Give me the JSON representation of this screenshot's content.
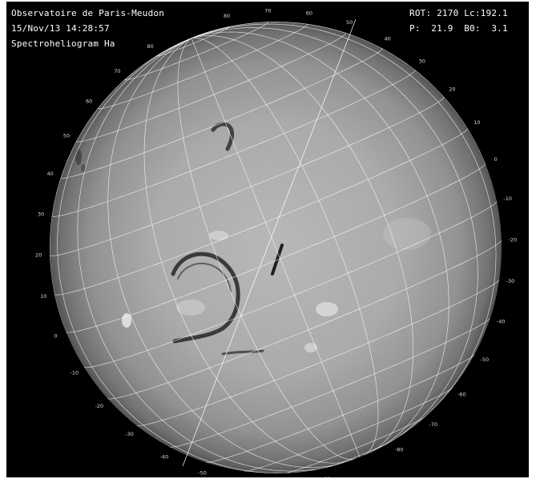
{
  "header": {
    "observatory": "Observatoire de Paris-Meudon",
    "datetime": "15/Nov/13 14:28:57",
    "instrument": "Spectroheliogram Ha",
    "rotation_line": "ROT: 2170 Lc:192.1",
    "angles_line": "P:  21.9  B0:  3.1"
  },
  "rotation": {
    "number": 2170,
    "lc": 192.1
  },
  "angles": {
    "p": 21.9,
    "b0": 3.1
  },
  "grid": {
    "latitudes_left": [
      "80",
      "70",
      "60",
      "50",
      "40",
      "30",
      "20",
      "10",
      "0",
      "-10",
      "-20",
      "-30",
      "-40",
      "-50",
      "-60",
      "-70",
      "-80"
    ],
    "latitudes_right": [
      "80",
      "70",
      "60",
      "50",
      "40",
      "30",
      "20",
      "10",
      "0",
      "-10",
      "-20",
      "-30",
      "-40",
      "-50",
      "-60",
      "-70",
      "-80"
    ],
    "latitude_values": [
      80,
      70,
      60,
      50,
      40,
      30,
      20,
      10,
      0,
      -10,
      -20,
      -30,
      -40,
      -50,
      -60,
      -70,
      -80
    ],
    "longitude_step_deg": 15,
    "latitude_step_deg": 10
  },
  "colors": {
    "background": "#000000",
    "disk_center": "#b4b4b4",
    "disk_limb": "#4a4a4a",
    "grid": "#ffffff",
    "text": "#ffffff"
  }
}
